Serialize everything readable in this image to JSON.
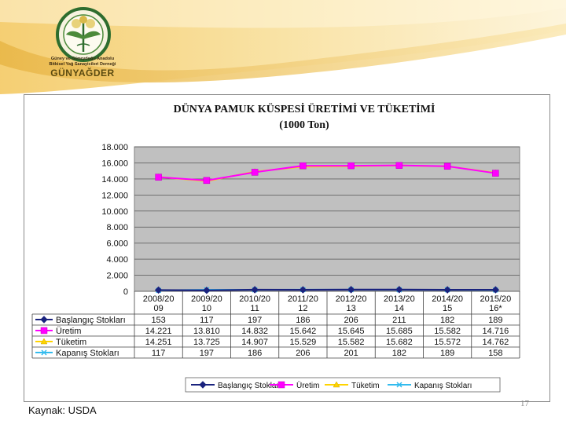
{
  "logo": {
    "ring_text": "GÜNEY VE GÜNEYDOĞU ANADOLU",
    "line1": "Güney ve Güneydoğu Anadolu",
    "line2": "Bitkisel Yağ Sanayicileri Derneği",
    "brand": "GÜNYAĞDER"
  },
  "source": "Kaynak: USDA",
  "page_number": "17",
  "colors": {
    "baslangic": "#1a237e",
    "uretim": "#ff00ff",
    "tuketim": "#ffd400",
    "kapanis": "#33bbee",
    "plot_bg": "#c0c0c0"
  },
  "chart_data": {
    "type": "line",
    "title": "DÜNYA PAMUK KÜSPESİ ÜRETİMİ VE TÜKETİMİ",
    "subtitle": "(1000 Ton)",
    "categories": [
      [
        "2008/20",
        "09"
      ],
      [
        "2009/20",
        "10"
      ],
      [
        "2010/20",
        "11"
      ],
      [
        "2011/20",
        "12"
      ],
      [
        "2012/20",
        "13"
      ],
      [
        "2013/20",
        "14"
      ],
      [
        "2014/20",
        "15"
      ],
      [
        "2015/20",
        "16*"
      ]
    ],
    "y_ticks": [
      "18.000",
      "16.000",
      "14.000",
      "12.000",
      "10.000",
      "8.000",
      "6.000",
      "4.000",
      "2.000",
      "0"
    ],
    "ylim": [
      0,
      18000
    ],
    "grid": true,
    "legend_position": "bottom",
    "series": [
      {
        "key": "baslangic",
        "name": "Başlangıç Stokları",
        "values": [
          153,
          117,
          197,
          186,
          206,
          211,
          182,
          189
        ],
        "labels": [
          "153",
          "117",
          "197",
          "186",
          "206",
          "211",
          "182",
          "189"
        ]
      },
      {
        "key": "uretim",
        "name": "Üretim",
        "values": [
          14221,
          13810,
          14832,
          15642,
          15645,
          15685,
          15582,
          14716
        ],
        "labels": [
          "14.221",
          "13.810",
          "14.832",
          "15.642",
          "15.645",
          "15.685",
          "15.582",
          "14.716"
        ]
      },
      {
        "key": "tuketim",
        "name": "Tüketim",
        "values": [
          14251,
          13725,
          14907,
          15529,
          15582,
          15682,
          15572,
          14762
        ],
        "labels": [
          "14.251",
          "13.725",
          "14.907",
          "15.529",
          "15.582",
          "15.682",
          "15.572",
          "14.762"
        ]
      },
      {
        "key": "kapanis",
        "name": "Kapanış Stokları",
        "values": [
          117,
          197,
          186,
          206,
          201,
          182,
          189,
          158
        ],
        "labels": [
          "117",
          "197",
          "186",
          "206",
          "201",
          "182",
          "189",
          "158"
        ]
      }
    ]
  }
}
